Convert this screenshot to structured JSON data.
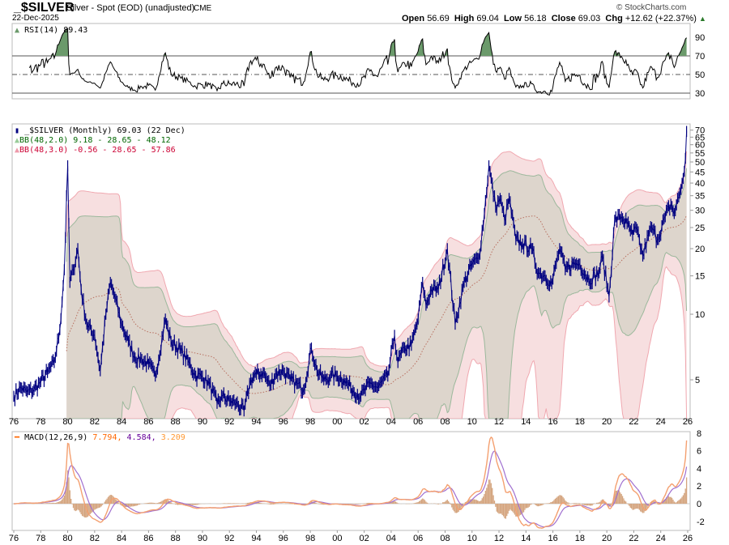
{
  "header": {
    "symbol": "_$SILVER",
    "description": "Silver - Spot (EOD) (unadjusted)",
    "exchange": "CME",
    "date": "22-Dec-2025",
    "copyright": "© StockCharts.com",
    "open_label": "Open",
    "open": "56.69",
    "high_label": "High",
    "high": "69.04",
    "low_label": "Low",
    "low": "56.18",
    "close_label": "Close",
    "close": "69.03",
    "chg_label": "Chg",
    "chg": "+12.62 (+22.37%)",
    "chg_arrow": "▲"
  },
  "rsi_panel": {
    "legend": "RSI(14) 89.43",
    "icon": "rsi-area-icon",
    "ticks": [
      90,
      70,
      50,
      30
    ],
    "fill_color": "#6b9a6b"
  },
  "price_panel": {
    "legend_price": "_$SILVER (Monthly) 69.03 (22 Dec)",
    "legend_bb2": "BB(48,2.0) 9.18 - 28.65 - 48.12",
    "legend_bb3": "BB(48,3.0) -0.56 - 28.65 - 57.86",
    "color_price": "#000080",
    "color_bb2": "#006600",
    "color_bb3": "#cc0033"
  },
  "macd_panel": {
    "legend_name": "MACD(12,26,9)",
    "macd_value": "7.794,",
    "signal_value": "4.584,",
    "hist_value": "3.209",
    "ticks": [
      8,
      6,
      4,
      2,
      0,
      -2
    ]
  },
  "chart_data": {
    "type": "line",
    "scale": "log",
    "frequency": "monthly",
    "x_ticks": [
      "76",
      "78",
      "80",
      "82",
      "84",
      "86",
      "88",
      "90",
      "92",
      "94",
      "96",
      "98",
      "00",
      "02",
      "04",
      "06",
      "08",
      "10",
      "12",
      "14",
      "16",
      "18",
      "20",
      "22",
      "24",
      "26"
    ],
    "y_ticks": [
      70,
      65,
      60,
      55,
      50,
      45,
      40,
      35,
      30,
      25,
      20,
      15,
      10,
      5
    ],
    "ylim": [
      3.3,
      75
    ],
    "price": [
      [
        "1976-01",
        4.2
      ],
      [
        "1976-07",
        4.6
      ],
      [
        "1977-01",
        4.4
      ],
      [
        "1977-07",
        4.5
      ],
      [
        "1978-01",
        4.9
      ],
      [
        "1978-07",
        5.4
      ],
      [
        "1979-01",
        6.0
      ],
      [
        "1979-06",
        8.5
      ],
      [
        "1979-10",
        16
      ],
      [
        "1980-01",
        48
      ],
      [
        "1980-03",
        14
      ],
      [
        "1980-06",
        16
      ],
      [
        "1980-10",
        20
      ],
      [
        "1981-01",
        13
      ],
      [
        "1981-06",
        9
      ],
      [
        "1982-01",
        8
      ],
      [
        "1982-06",
        5.5
      ],
      [
        "1982-11",
        10
      ],
      [
        "1983-03",
        14
      ],
      [
        "1983-07",
        12
      ],
      [
        "1984-01",
        9
      ],
      [
        "1984-07",
        7.5
      ],
      [
        "1985-01",
        6.3
      ],
      [
        "1985-07",
        6.2
      ],
      [
        "1986-01",
        5.9
      ],
      [
        "1986-07",
        5.2
      ],
      [
        "1987-04",
        9.5
      ],
      [
        "1987-09",
        7.5
      ],
      [
        "1988-06",
        6.8
      ],
      [
        "1989-01",
        6.0
      ],
      [
        "1989-07",
        5.2
      ],
      [
        "1990-01",
        5.2
      ],
      [
        "1990-07",
        4.8
      ],
      [
        "1991-02",
        3.9
      ],
      [
        "1991-07",
        4.2
      ],
      [
        "1992-01",
        4.0
      ],
      [
        "1992-07",
        3.9
      ],
      [
        "1993-02",
        3.6
      ],
      [
        "1993-08",
        5.0
      ],
      [
        "1994-01",
        5.3
      ],
      [
        "1994-07",
        5.4
      ],
      [
        "1995-01",
        4.7
      ],
      [
        "1995-06",
        5.3
      ],
      [
        "1996-01",
        5.5
      ],
      [
        "1996-07",
        5.0
      ],
      [
        "1997-01",
        4.8
      ],
      [
        "1997-07",
        4.5
      ],
      [
        "1998-02",
        7.0
      ],
      [
        "1998-07",
        5.5
      ],
      [
        "1999-01",
        5.0
      ],
      [
        "1999-07",
        5.2
      ],
      [
        "2000-01",
        5.2
      ],
      [
        "2000-07",
        5.0
      ],
      [
        "2001-01",
        4.6
      ],
      [
        "2001-10",
        4.2
      ],
      [
        "2002-06",
        4.8
      ],
      [
        "2003-01",
        4.6
      ],
      [
        "2003-10",
        5.2
      ],
      [
        "2004-04",
        8.0
      ],
      [
        "2004-07",
        6.0
      ],
      [
        "2005-01",
        7.0
      ],
      [
        "2005-07",
        7.2
      ],
      [
        "2006-01",
        9.5
      ],
      [
        "2006-05",
        14
      ],
      [
        "2006-08",
        11
      ],
      [
        "2007-01",
        13
      ],
      [
        "2007-07",
        13
      ],
      [
        "2008-03",
        20
      ],
      [
        "2008-10",
        9
      ],
      [
        "2009-06",
        14
      ],
      [
        "2010-01",
        17
      ],
      [
        "2010-07",
        18
      ],
      [
        "2010-12",
        29
      ],
      [
        "2011-04",
        48
      ],
      [
        "2011-10",
        31
      ],
      [
        "2012-02",
        34
      ],
      [
        "2012-06",
        27
      ],
      [
        "2012-10",
        34
      ],
      [
        "2013-04",
        22
      ],
      [
        "2013-10",
        21
      ],
      [
        "2014-06",
        20
      ],
      [
        "2014-12",
        15.5
      ],
      [
        "2015-06",
        15
      ],
      [
        "2015-12",
        13.8
      ],
      [
        "2016-07",
        20
      ],
      [
        "2016-12",
        16
      ],
      [
        "2017-07",
        17
      ],
      [
        "2018-01",
        17
      ],
      [
        "2018-09",
        14.3
      ],
      [
        "2019-06",
        15.5
      ],
      [
        "2019-09",
        18.5
      ],
      [
        "2020-03",
        12
      ],
      [
        "2020-08",
        27
      ],
      [
        "2021-02",
        28
      ],
      [
        "2021-07",
        26
      ],
      [
        "2021-12",
        23
      ],
      [
        "2022-03",
        25
      ],
      [
        "2022-09",
        18.5
      ],
      [
        "2023-02",
        23
      ],
      [
        "2023-05",
        25
      ],
      [
        "2023-10",
        22
      ],
      [
        "2024-05",
        28
      ],
      [
        "2024-10",
        32
      ],
      [
        "2025-01",
        29
      ],
      [
        "2025-06",
        36
      ],
      [
        "2025-09",
        42
      ],
      [
        "2025-11",
        52
      ],
      [
        "2025-12",
        69.03
      ]
    ]
  }
}
